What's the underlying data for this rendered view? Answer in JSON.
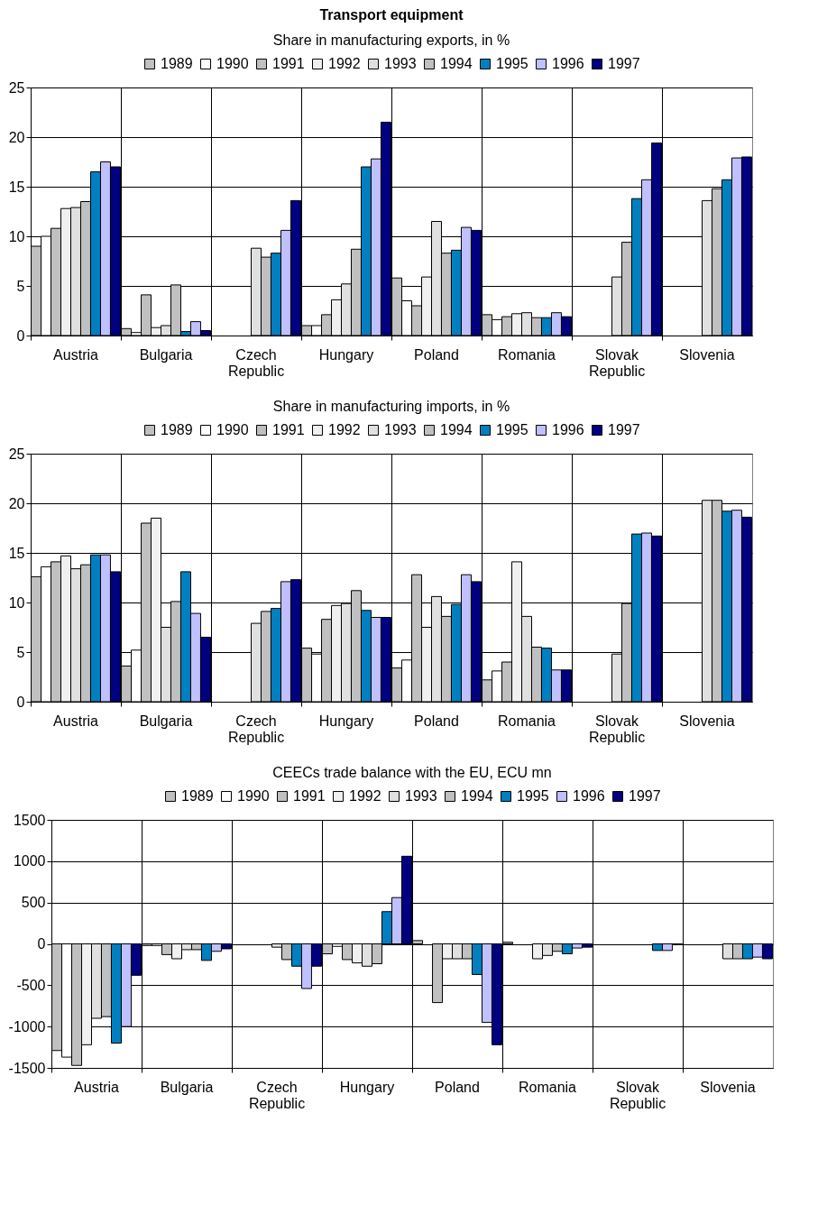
{
  "chart_data": [
    {
      "type": "bar",
      "title": "Transport equipment",
      "subtitle": "Share in manufacturing exports, in %",
      "categories": [
        "Austria",
        "Bulgaria",
        "Czech Republic",
        "Hungary",
        "Poland",
        "Romania",
        "Slovak Republic",
        "Slovenia"
      ],
      "series": [
        {
          "name": "1989",
          "color": "#c0c0c0",
          "values": [
            9.0,
            0.7,
            null,
            1.0,
            5.8,
            2.1,
            null,
            null
          ]
        },
        {
          "name": "1990",
          "color": "#ffffff",
          "values": [
            10.0,
            0.3,
            null,
            1.0,
            3.5,
            1.6,
            null,
            null
          ]
        },
        {
          "name": "1991",
          "color": "#c0c0c0",
          "values": [
            10.8,
            4.1,
            null,
            2.1,
            3.0,
            1.9,
            null,
            null
          ]
        },
        {
          "name": "1992",
          "color": "#f0f0f0",
          "values": [
            12.8,
            0.8,
            null,
            3.6,
            5.9,
            2.2,
            null,
            null
          ]
        },
        {
          "name": "1993",
          "color": "#e0e0e0",
          "values": [
            12.9,
            1.0,
            8.8,
            5.2,
            11.5,
            2.3,
            5.9,
            13.6
          ]
        },
        {
          "name": "1994",
          "color": "#c0c0c0",
          "values": [
            13.5,
            5.1,
            7.9,
            8.7,
            8.3,
            1.8,
            9.4,
            14.8
          ]
        },
        {
          "name": "1995",
          "color": "#0080c0",
          "values": [
            16.5,
            0.4,
            8.3,
            17.0,
            8.6,
            1.8,
            13.8,
            15.7
          ]
        },
        {
          "name": "1996",
          "color": "#c0c0ff",
          "values": [
            17.5,
            1.4,
            10.6,
            17.8,
            10.9,
            2.3,
            15.7,
            17.9
          ]
        },
        {
          "name": "1997",
          "color": "#000080",
          "values": [
            17.0,
            0.5,
            13.6,
            21.5,
            10.6,
            1.9,
            19.4,
            18.0
          ]
        }
      ],
      "ylim": [
        0,
        25
      ],
      "yticks": [
        0,
        5,
        10,
        15,
        20,
        25
      ],
      "grid": true,
      "legend": "top"
    },
    {
      "type": "bar",
      "title": "Share in manufacturing imports, in %",
      "categories": [
        "Austria",
        "Bulgaria",
        "Czech Republic",
        "Hungary",
        "Poland",
        "Romania",
        "Slovak Republic",
        "Slovenia"
      ],
      "series": [
        {
          "name": "1989",
          "color": "#c0c0c0",
          "values": [
            12.6,
            3.6,
            null,
            5.4,
            3.4,
            2.2,
            null,
            null
          ]
        },
        {
          "name": "1990",
          "color": "#ffffff",
          "values": [
            13.6,
            5.2,
            null,
            4.8,
            4.2,
            3.1,
            null,
            null
          ]
        },
        {
          "name": "1991",
          "color": "#c0c0c0",
          "values": [
            14.1,
            18.0,
            null,
            8.3,
            12.8,
            4.0,
            null,
            null
          ]
        },
        {
          "name": "1992",
          "color": "#f0f0f0",
          "values": [
            14.7,
            18.5,
            null,
            9.7,
            7.5,
            14.1,
            null,
            null
          ]
        },
        {
          "name": "1993",
          "color": "#e0e0e0",
          "values": [
            13.4,
            7.5,
            7.9,
            9.9,
            10.6,
            8.6,
            4.8,
            20.3
          ]
        },
        {
          "name": "1994",
          "color": "#c0c0c0",
          "values": [
            13.8,
            10.1,
            9.1,
            11.2,
            8.6,
            5.5,
            9.9,
            20.3
          ]
        },
        {
          "name": "1995",
          "color": "#0080c0",
          "values": [
            14.8,
            13.1,
            9.4,
            9.2,
            9.8,
            5.4,
            16.9,
            19.2
          ]
        },
        {
          "name": "1996",
          "color": "#c0c0ff",
          "values": [
            14.8,
            8.9,
            12.1,
            8.5,
            12.8,
            3.2,
            17.0,
            19.3
          ]
        },
        {
          "name": "1997",
          "color": "#000080",
          "values": [
            13.1,
            6.5,
            12.3,
            8.5,
            12.1,
            3.2,
            16.7,
            18.6
          ]
        }
      ],
      "ylim": [
        0,
        25
      ],
      "yticks": [
        0,
        5,
        10,
        15,
        20,
        25
      ],
      "grid": true,
      "legend": "top"
    },
    {
      "type": "bar",
      "title": "CEECs trade balance with the EU, ECU mn",
      "categories": [
        "Austria",
        "Bulgaria",
        "Czech Republic",
        "Hungary",
        "Poland",
        "Romania",
        "Slovak Republic",
        "Slovenia"
      ],
      "series": [
        {
          "name": "1989",
          "color": "#c0c0c0",
          "values": [
            -1290,
            -20,
            null,
            -120,
            40,
            20,
            null,
            null
          ]
        },
        {
          "name": "1990",
          "color": "#ffffff",
          "values": [
            -1370,
            -20,
            null,
            -30,
            null,
            null,
            null,
            null
          ]
        },
        {
          "name": "1991",
          "color": "#c0c0c0",
          "values": [
            -1470,
            -130,
            null,
            -190,
            -710,
            null,
            null,
            null
          ]
        },
        {
          "name": "1992",
          "color": "#f0f0f0",
          "values": [
            -1220,
            -180,
            null,
            -230,
            -180,
            -180,
            null,
            null
          ]
        },
        {
          "name": "1993",
          "color": "#e0e0e0",
          "values": [
            -900,
            -70,
            -40,
            -270,
            -180,
            -140,
            null,
            -180
          ]
        },
        {
          "name": "1994",
          "color": "#c0c0c0",
          "values": [
            -880,
            -70,
            -190,
            -240,
            -180,
            -90,
            null,
            -180
          ]
        },
        {
          "name": "1995",
          "color": "#0080c0",
          "values": [
            -1200,
            -200,
            -270,
            390,
            -370,
            -120,
            -80,
            -180
          ]
        },
        {
          "name": "1996",
          "color": "#c0c0ff",
          "values": [
            -1000,
            -90,
            -540,
            560,
            -950,
            -50,
            -80,
            -160
          ]
        },
        {
          "name": "1997",
          "color": "#000080",
          "values": [
            -380,
            -60,
            -270,
            1060,
            -1220,
            -40,
            -10,
            -180
          ]
        }
      ],
      "ylim": [
        -1500,
        1500
      ],
      "yticks": [
        -1500,
        -1000,
        -500,
        0,
        500,
        1000,
        1500
      ],
      "grid": true,
      "legend": "top"
    }
  ]
}
